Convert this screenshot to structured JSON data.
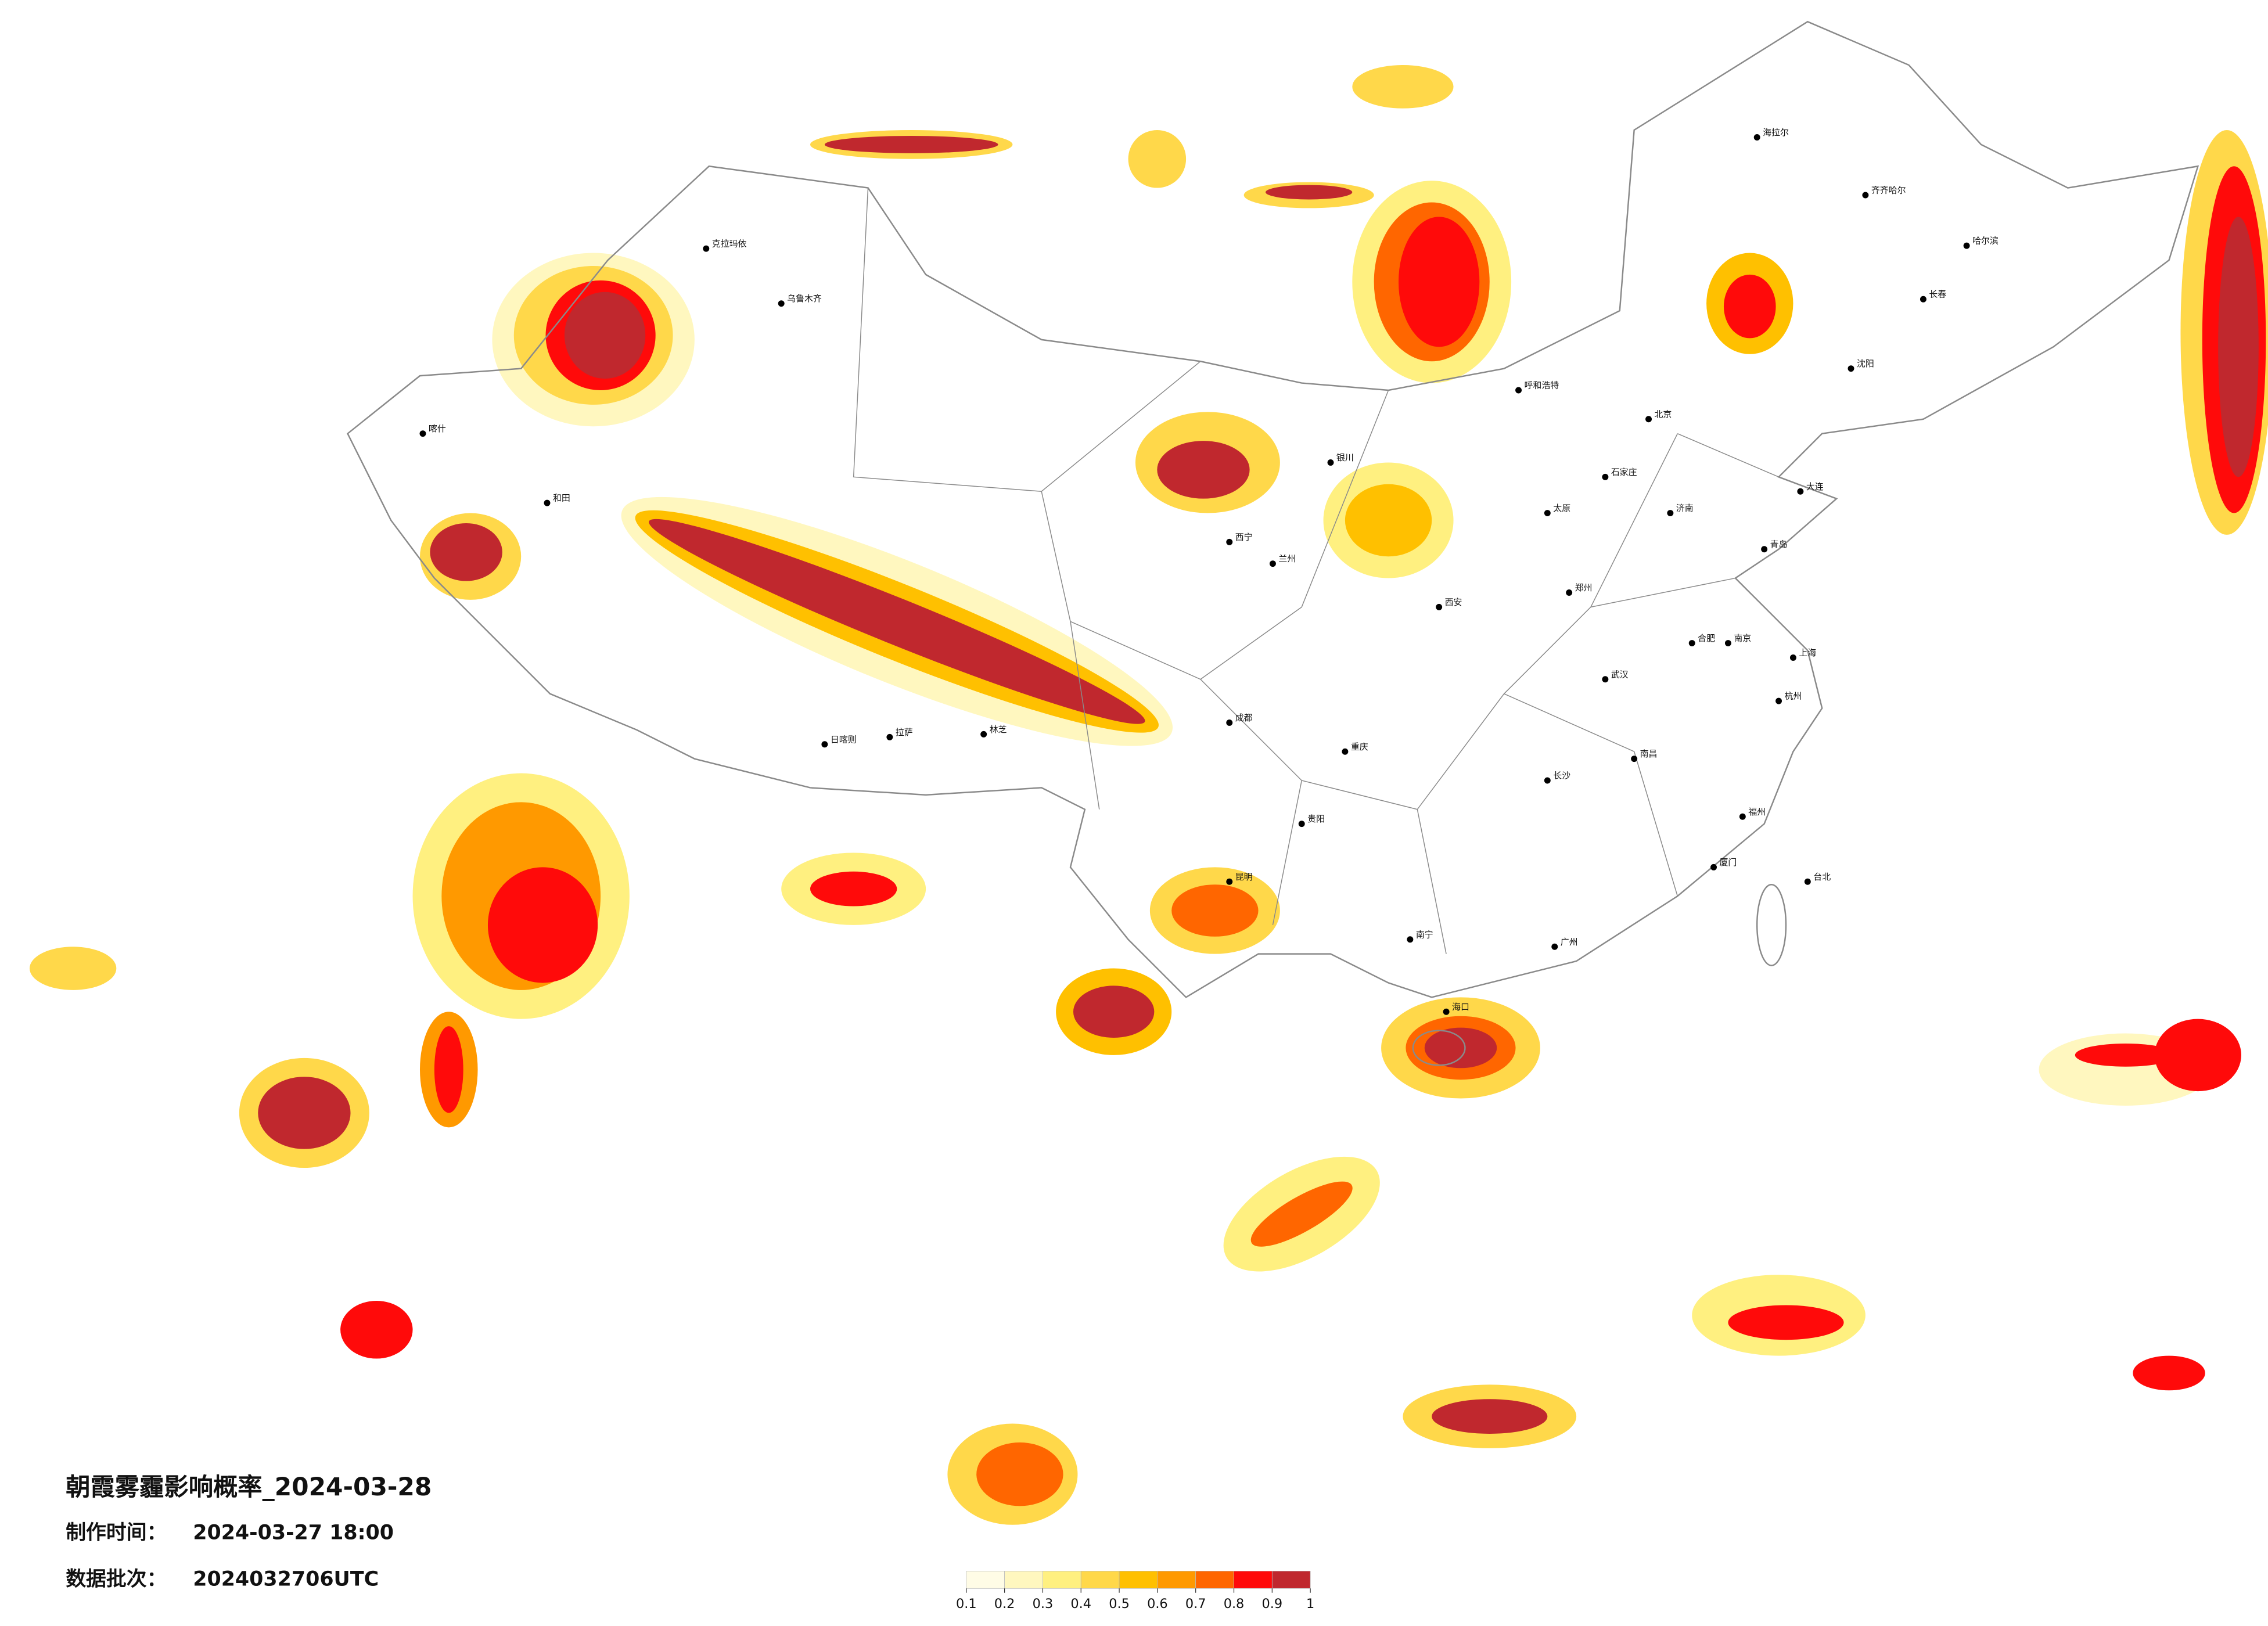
{
  "map": {
    "title": "朝霞雾霾影响概率_2024-03-28",
    "made_time_label": "制作时间：",
    "made_time": "2024-03-27 18:00",
    "batch_label": "数据批次：",
    "batch": "2024032706UTC"
  },
  "legend": {
    "ticks": [
      0.1,
      0.2,
      0.3,
      0.4,
      0.5,
      0.6,
      0.7,
      0.8,
      0.9,
      1
    ],
    "colors": [
      "#fffce6",
      "#fff7bf",
      "#fff080",
      "#ffd84a",
      "#ffc000",
      "#ff9900",
      "#ff6600",
      "#ff0a0a",
      "#c0282e"
    ]
  },
  "cities": [
    "克拉玛依",
    "乌鲁木齐",
    "喀什",
    "和田",
    "日喀则",
    "拉萨",
    "林芝",
    "西宁",
    "兰州",
    "银川",
    "呼和浩特",
    "太原",
    "石家庄",
    "北京",
    "济南",
    "郑州",
    "西安",
    "成都",
    "重庆",
    "贵阳",
    "昆明",
    "南宁",
    "广州",
    "长沙",
    "武汉",
    "南昌",
    "合肥",
    "南京",
    "上海",
    "杭州",
    "福州",
    "厦门",
    "台北",
    "海口",
    "沈阳",
    "长春",
    "哈尔滨",
    "齐齐哈尔",
    "海拉尔",
    "大连",
    "青岛"
  ]
}
